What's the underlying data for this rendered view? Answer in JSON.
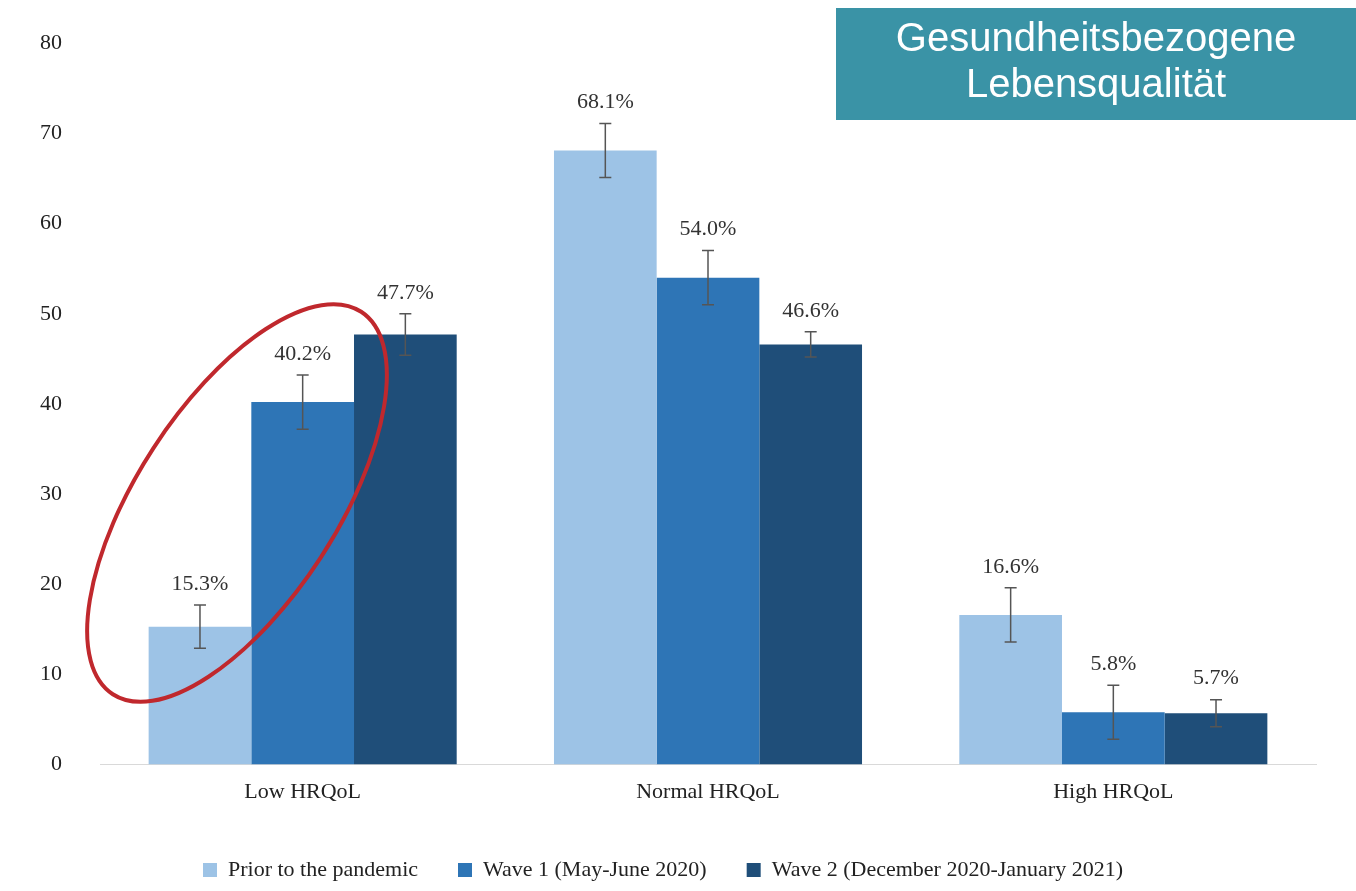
{
  "chart_data": {
    "type": "bar",
    "title": "Gesundheitsbezogene Lebensqualität",
    "categories": [
      "Low HRQoL",
      "Normal HRQoL",
      "High HRQoL"
    ],
    "series": [
      {
        "name": "Prior to the pandemic",
        "color": "#9dc3e6",
        "values": [
          15.3,
          68.1,
          16.6
        ],
        "errors": [
          2.4,
          3,
          3
        ],
        "value_labels": [
          "15.3%",
          "68.1%",
          "16.6%"
        ]
      },
      {
        "name": "Wave 1 (May-June 2020)",
        "color": "#2e75b6",
        "values": [
          40.2,
          54.0,
          5.8
        ],
        "errors": [
          3,
          3,
          3
        ],
        "value_labels": [
          "40.2%",
          "54.0%",
          "5.8%"
        ]
      },
      {
        "name": "Wave 2 (December 2020-January 2021)",
        "color": "#1f4e79",
        "values": [
          47.7,
          46.6,
          5.7
        ],
        "errors": [
          2.3,
          1.4,
          1.5
        ],
        "value_labels": [
          "47.7%",
          "46.6%",
          "5.7%"
        ]
      }
    ],
    "ylim": [
      0,
      80
    ],
    "yticks": [
      0,
      10,
      20,
      30,
      40,
      50,
      60,
      70,
      80
    ],
    "grid": false,
    "legend": "bottom"
  }
}
